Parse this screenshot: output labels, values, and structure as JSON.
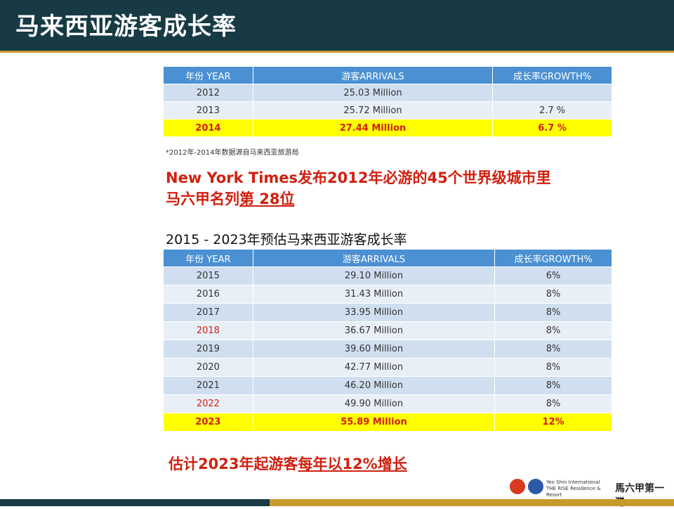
{
  "title": "马来西亚游客成长率",
  "table1": {
    "headers": [
      "年份 YEAR",
      "游客ARRIVALS",
      "成长率GROWTH%"
    ],
    "rows": [
      {
        "year": "2012",
        "arrivals": "25.03 Million",
        "growth": ""
      },
      {
        "year": "2013",
        "arrivals": "25.72 Million",
        "growth": "2.7 %"
      },
      {
        "year": "2014",
        "arrivals": "27.44 Million",
        "growth": "6.7 %"
      }
    ]
  },
  "note": "*2012年-2014年数据源自马来西亚旅游局",
  "headline1": {
    "line1": "New York Times发布2012年必游的45个世界级城市里",
    "line2_prefix": "马六甲名列",
    "line2_underlined": "第 28位"
  },
  "subtitle2": "2015 - 2023年预估马来西亚游客成长率",
  "table2": {
    "headers": [
      "年份 YEAR",
      "游客ARRIVALS",
      "成长率GROWTH%"
    ],
    "rows": [
      {
        "year": "2015",
        "arrivals": "29.10 Million",
        "growth": "6%"
      },
      {
        "year": "2016",
        "arrivals": "31.43 Million",
        "growth": "8%"
      },
      {
        "year": "2017",
        "arrivals": "33.95 Million",
        "growth": "8%"
      },
      {
        "year": "2018",
        "arrivals": "36.67 Million",
        "growth": "8%"
      },
      {
        "year": "2019",
        "arrivals": "39.60 Million",
        "growth": "8%"
      },
      {
        "year": "2020",
        "arrivals": "42.77 Million",
        "growth": "8%"
      },
      {
        "year": "2021",
        "arrivals": "46.20 Million",
        "growth": "8%"
      },
      {
        "year": "2022",
        "arrivals": "49.90 Million",
        "growth": "8%"
      },
      {
        "year": "2023",
        "arrivals": "55.89 Million",
        "growth": "12%"
      }
    ]
  },
  "headline2": {
    "prefix": "估计2023年起游客",
    "underlined": "每年以12%增长"
  },
  "footer": {
    "brand_line1": "Yeo Shin International",
    "brand_line2": "THE RISE Residence & Resort",
    "brand_cn": "馬六甲第一灣"
  },
  "colors": {
    "title_bg": "#173a44",
    "header_blue": "#4a90d2",
    "highlight": "#ffff00",
    "accent_red": "#d02010",
    "gold": "#c89a2e"
  }
}
